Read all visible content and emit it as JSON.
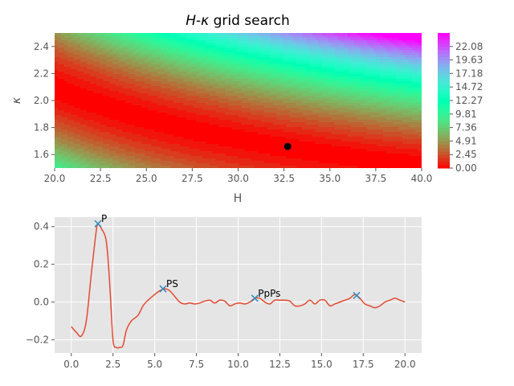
{
  "chart_data": [
    {
      "type": "heatmap",
      "title_prefix": "H",
      "title_suffix": " grid search",
      "title_symbol": "κ",
      "xlabel": "H",
      "ylabel": "κ",
      "xlim": [
        20,
        40
      ],
      "ylim": [
        1.5,
        2.5
      ],
      "xticks": [
        "20.0",
        "22.5",
        "25.0",
        "27.5",
        "30.0",
        "32.5",
        "35.0",
        "37.5",
        "40.0"
      ],
      "yticks": [
        "1.6",
        "1.8",
        "2.0",
        "2.2",
        "2.4"
      ],
      "colorbar": {
        "min": 0.0,
        "max": 24.53,
        "ticks": [
          "0.00",
          "2.45",
          "4.91",
          "7.36",
          "9.81",
          "12.27",
          "14.72",
          "17.18",
          "19.63",
          "22.08"
        ],
        "colormap": "rainbow_r"
      },
      "minimum_marker": {
        "H": 32.7,
        "kappa": 1.66,
        "color": "#000000"
      },
      "grid": false
    },
    {
      "type": "line",
      "xlim": [
        -1,
        21
      ],
      "ylim": [
        -0.27,
        0.45
      ],
      "xticks": [
        "0.0",
        "2.5",
        "5.0",
        "7.5",
        "10.0",
        "12.5",
        "15.0",
        "17.5",
        "20.0"
      ],
      "yticks": [
        "−0.2",
        "0.0",
        "0.2",
        "0.4"
      ],
      "grid": true,
      "series": [
        {
          "color": "#e24a33",
          "x": [
            0,
            0.3,
            0.6,
            0.9,
            1.2,
            1.5,
            1.6,
            1.8,
            2.1,
            2.3,
            2.5,
            2.7,
            2.9,
            3.1,
            3.3,
            3.6,
            4.0,
            4.3,
            4.6,
            5.0,
            5.3,
            5.6,
            5.9,
            6.2,
            6.5,
            6.8,
            7.1,
            7.4,
            7.7,
            8.0,
            8.3,
            8.6,
            8.9,
            9.2,
            9.5,
            9.8,
            10.1,
            10.4,
            10.7,
            11.0,
            11.3,
            11.6,
            11.9,
            12.2,
            12.5,
            12.8,
            13.1,
            13.4,
            13.7,
            14.0,
            14.3,
            14.6,
            14.9,
            15.2,
            15.5,
            15.8,
            16.1,
            16.4,
            16.7,
            17.0,
            17.3,
            17.6,
            17.9,
            18.2,
            18.5,
            18.8,
            19.1,
            19.4,
            19.7,
            20.0
          ],
          "y": [
            -0.13,
            -0.16,
            -0.18,
            -0.1,
            0.15,
            0.38,
            0.41,
            0.39,
            0.32,
            0.1,
            -0.2,
            -0.24,
            -0.24,
            -0.23,
            -0.15,
            -0.1,
            -0.07,
            -0.02,
            0.01,
            0.04,
            0.06,
            0.07,
            0.06,
            0.03,
            0.0,
            -0.01,
            -0.005,
            -0.01,
            -0.005,
            0.005,
            0.01,
            -0.005,
            0.01,
            0.005,
            -0.02,
            -0.01,
            -0.005,
            -0.01,
            0.0,
            0.02,
            0.02,
            0.0,
            -0.01,
            0.01,
            0.01,
            0.01,
            0.005,
            -0.02,
            -0.02,
            -0.01,
            0.01,
            -0.01,
            0.01,
            0.01,
            -0.02,
            -0.01,
            0.0,
            0.01,
            0.02,
            0.04,
            0.02,
            -0.01,
            -0.02,
            -0.03,
            -0.02,
            0.0,
            0.01,
            0.02,
            0.01,
            0.0
          ]
        }
      ],
      "markers": [
        {
          "label": "P",
          "x": 1.6,
          "y": 0.415
        },
        {
          "label": "PS",
          "x": 5.5,
          "y": 0.07
        },
        {
          "label": "PpPs",
          "x": 11.0,
          "y": 0.02
        },
        {
          "label": "",
          "x": 17.1,
          "y": 0.035
        }
      ],
      "marker_color": "#348abd"
    }
  ]
}
